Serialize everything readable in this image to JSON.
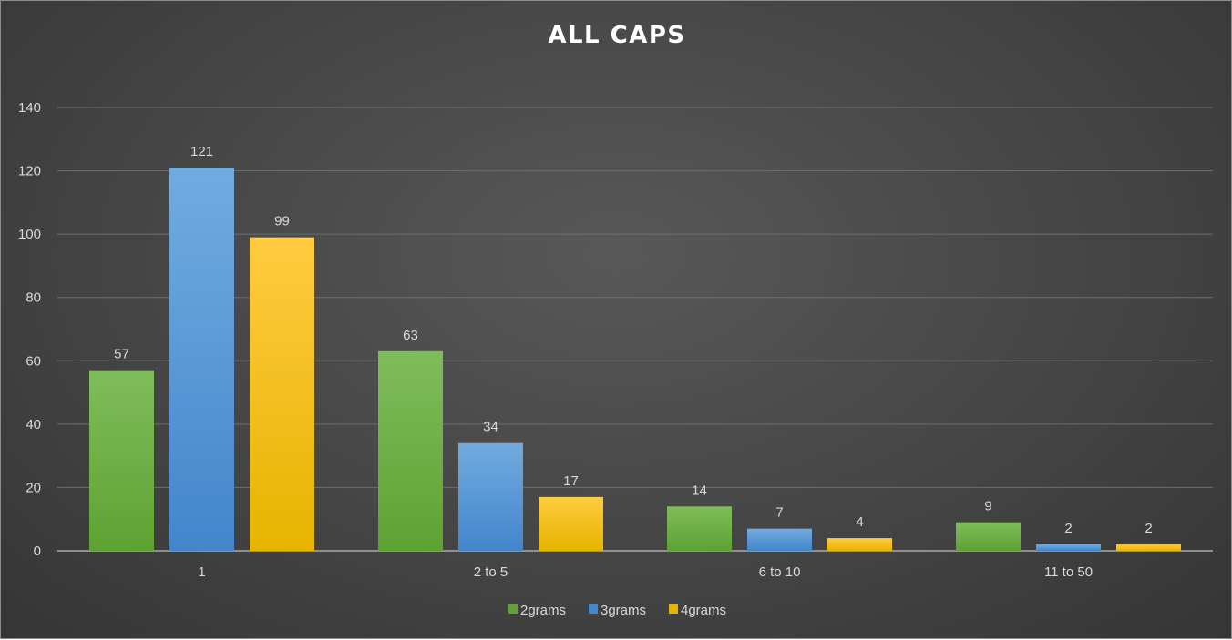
{
  "chart_data": {
    "type": "bar",
    "title": "ALL CAPS",
    "categories": [
      "1",
      "2 to 5",
      "6 to 10",
      "11 to 50"
    ],
    "series": [
      {
        "name": "2grams",
        "values": [
          57,
          63,
          14,
          9
        ],
        "color_top": "#7fbd5a",
        "color_bottom": "#5ea232"
      },
      {
        "name": "3grams",
        "values": [
          121,
          34,
          7,
          2
        ],
        "color_top": "#72abe0",
        "color_bottom": "#4386cc"
      },
      {
        "name": "4grams",
        "values": [
          99,
          17,
          4,
          2
        ],
        "color_top": "#ffcb40",
        "color_bottom": "#e6b400"
      }
    ],
    "ylim": [
      0,
      140
    ],
    "yticks": [
      0,
      20,
      40,
      60,
      80,
      100,
      120,
      140
    ],
    "xlabel": "",
    "ylabel": "",
    "grid": true,
    "legend": "bottom-center",
    "data_labels": true
  }
}
